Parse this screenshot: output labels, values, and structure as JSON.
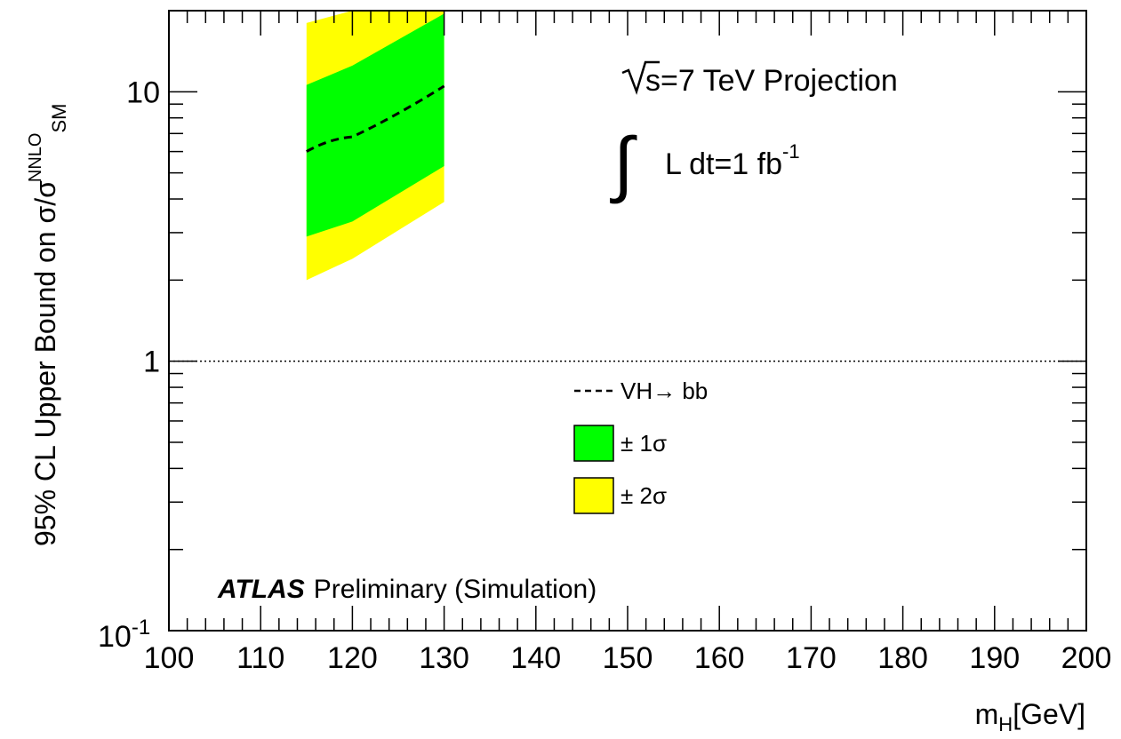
{
  "chart_data": {
    "type": "area",
    "title": "",
    "xlabel": {
      "main": "m",
      "sub": "H",
      "rest": "[GeV]"
    },
    "ylabel": {
      "main": "95% CL Upper Bound on σ/σ",
      "sup": "NNLO",
      "sub": "SM"
    },
    "xlim": [
      100,
      200
    ],
    "ylim": [
      0.1,
      20
    ],
    "y_scale": "log",
    "grid": false,
    "x_tick_labels": [
      "100",
      "110",
      "120",
      "130",
      "140",
      "150",
      "160",
      "170",
      "180",
      "190",
      "200"
    ],
    "y_tick_labels": [
      {
        "value": 10,
        "label": "10"
      },
      {
        "value": 1,
        "label": "1"
      },
      {
        "value": 0.1,
        "base": "10",
        "exp": "-1"
      }
    ],
    "x": [
      115,
      120,
      130
    ],
    "series": [
      {
        "name": "VH→ bb",
        "style": "dashed",
        "color": "#000000",
        "values": [
          6.0,
          6.8,
          10.5
        ]
      },
      {
        "name": "± 1σ",
        "style": "band",
        "color": "#00ff00",
        "lower": [
          2.9,
          3.3,
          5.3
        ],
        "upper": [
          10.6,
          12.5,
          19.5
        ]
      },
      {
        "name": "± 2σ",
        "style": "band",
        "color": "#ffff00",
        "lower": [
          2.0,
          2.4,
          3.9
        ],
        "upper": [
          18.0,
          20.0,
          20.0
        ]
      }
    ],
    "reference_line": {
      "y": 1,
      "style": "dotted"
    },
    "legend": {
      "position": "center",
      "entries": [
        {
          "text": "VH→ bb",
          "kind": "line"
        },
        {
          "text": "± 1σ",
          "kind": "box",
          "color": "#00ff00"
        },
        {
          "text": "± 2σ",
          "kind": "box",
          "color": "#ffff00"
        }
      ]
    },
    "annotations": {
      "energy_sqrt": "s",
      "energy_text": "=7 TeV Projection",
      "lumi_text": "L dt=1 fb",
      "lumi_exp": "-1",
      "atlas_bold": "ATLAS",
      "atlas_rest": "Preliminary (Simulation)"
    }
  }
}
